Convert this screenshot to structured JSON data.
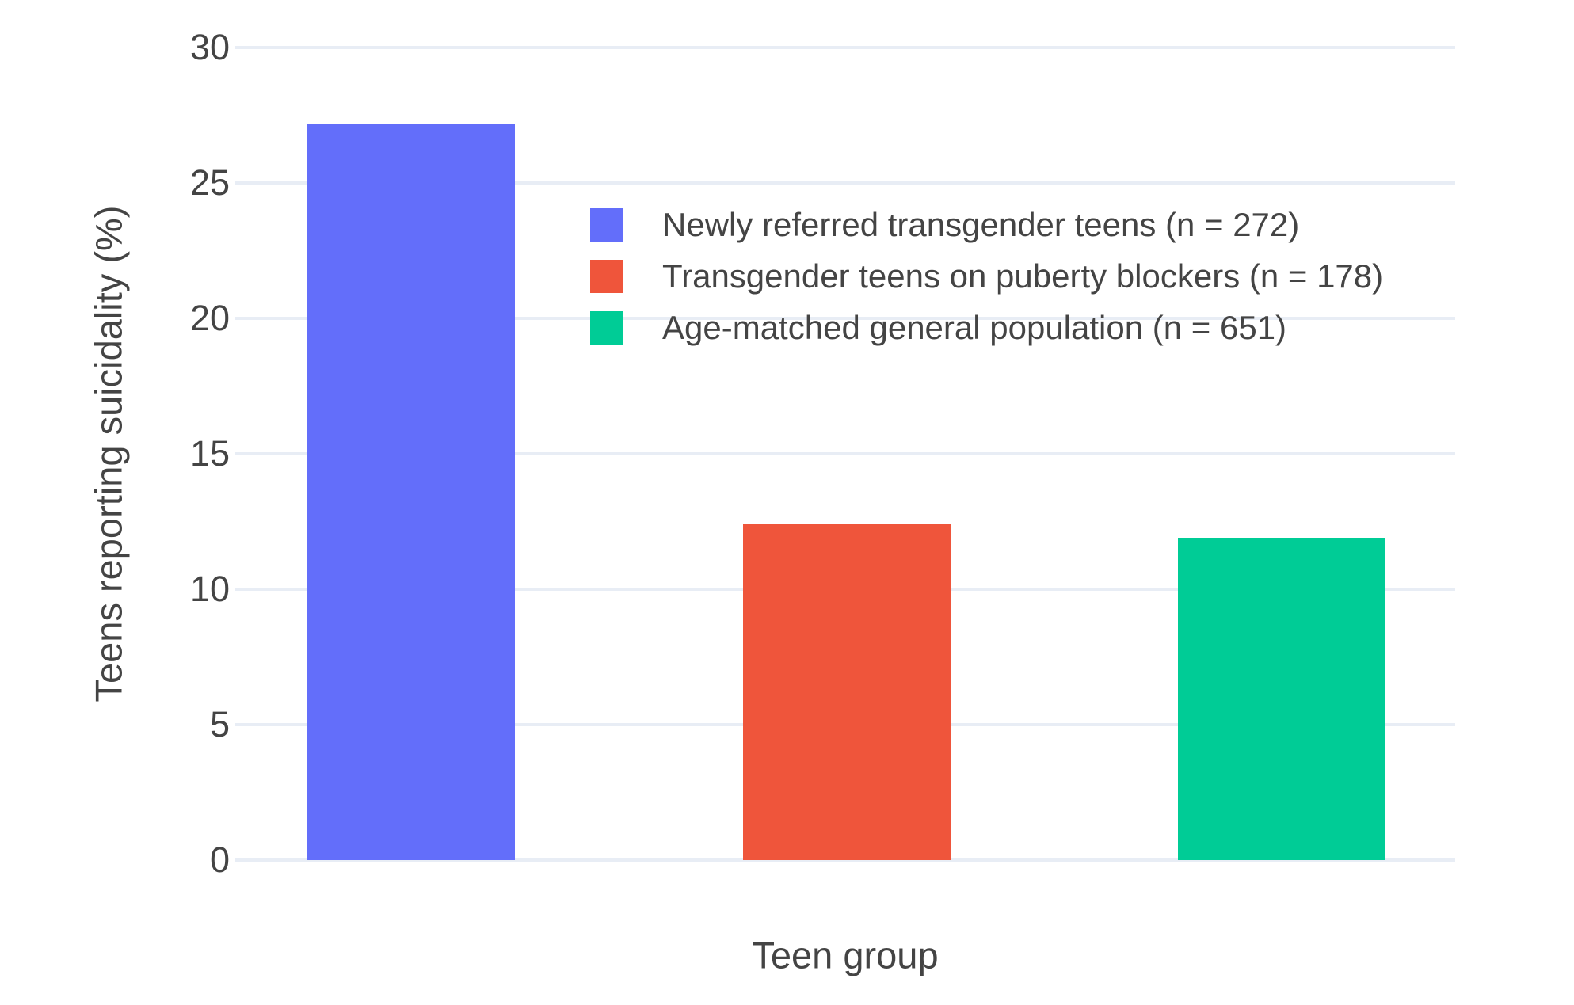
{
  "chart_data": {
    "type": "bar",
    "title": "",
    "xlabel": "Teen group",
    "ylabel": "Teens reporting suicidality (%)",
    "ylim": [
      0,
      30
    ],
    "yticks": [
      0,
      5,
      10,
      15,
      20,
      25,
      30
    ],
    "grid": true,
    "background_color": "#ffffff",
    "gridline_color": "#e8edf5",
    "text_color": "#444444",
    "legend_position": "top-left-inside-plot",
    "x_tick_labels_visible": false,
    "bars": [
      {
        "label": "Newly referred transgender teens (n = 272)",
        "value": 27.2,
        "color": "#636EFA"
      },
      {
        "label": "Transgender teens on puberty blockers (n = 178)",
        "value": 12.4,
        "color": "#EF553B"
      },
      {
        "label": "Age-matched general population (n = 651)",
        "value": 11.9,
        "color": "#00CC96"
      }
    ]
  }
}
